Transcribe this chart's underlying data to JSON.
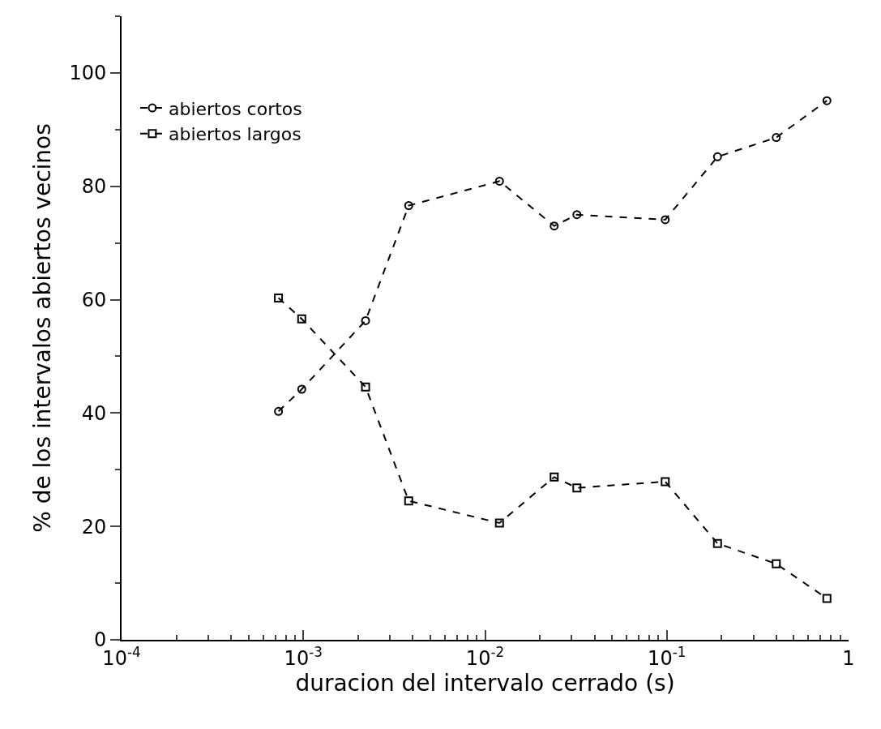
{
  "chart_data": {
    "type": "line",
    "xlabel": "duracion del intervalo cerrado (s)",
    "ylabel": "% de los intervalos abiertos vecinos",
    "log": "x",
    "xlim": [
      0.0001,
      1
    ],
    "ylim": [
      0,
      110
    ],
    "xticks": [
      {
        "value": 0.0001,
        "label": "10$^{-4}$"
      },
      {
        "value": 0.001,
        "label": "10$^{-3}$"
      },
      {
        "value": 0.01,
        "label": "10$^{-2}$"
      },
      {
        "value": 0.1,
        "label": "10$^{-1}$"
      },
      1
    ],
    "yticks": [
      0,
      20,
      40,
      60,
      80,
      100
    ],
    "legend": "top left",
    "line_style": "dashed",
    "x": [
      0.00073,
      0.00098,
      0.0022,
      0.0038,
      0.012,
      0.024,
      0.032,
      0.098,
      0.19,
      0.4,
      0.76
    ],
    "series": [
      {
        "name": "abiertos cortos",
        "color": "#000000",
        "marker": "circle",
        "values": [
          40.3,
          44.2,
          56.3,
          76.6,
          80.9,
          73.0,
          75.0,
          74.1,
          85.2,
          88.6,
          95.1
        ]
      },
      {
        "name": "abiertos largos",
        "color": "#000000",
        "marker": "square",
        "values": [
          60.3,
          56.6,
          44.6,
          24.5,
          20.6,
          28.7,
          26.8,
          27.9,
          17.0,
          13.4,
          7.3
        ]
      }
    ]
  }
}
